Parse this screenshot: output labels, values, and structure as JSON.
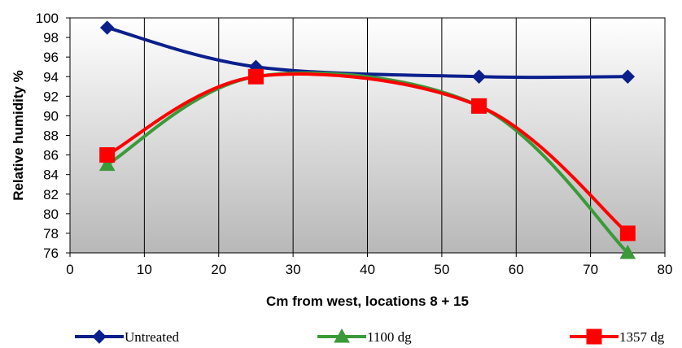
{
  "chart_data": {
    "type": "line",
    "title": "",
    "xlabel": "Cm from west, locations 8 + 15",
    "ylabel": "Relative humidity %",
    "xlim": [
      0,
      80
    ],
    "ylim": [
      76,
      100
    ],
    "x_ticks": [
      0,
      10,
      20,
      30,
      40,
      50,
      60,
      70,
      80
    ],
    "y_ticks": [
      76,
      78,
      80,
      82,
      84,
      86,
      88,
      90,
      92,
      94,
      96,
      98,
      100
    ],
    "grid": "vertical lines at x ticks",
    "smoothed": true,
    "legend_position": "bottom",
    "series": [
      {
        "name": "Untreated",
        "color": "#0b1f8c",
        "marker": "diamond",
        "x": [
          5,
          25,
          55,
          75
        ],
        "y": [
          99,
          95,
          94,
          94
        ]
      },
      {
        "name": "1100 dg",
        "color": "#3a9a3a",
        "marker": "triangle",
        "x": [
          5,
          25,
          55,
          75
        ],
        "y": [
          85,
          94,
          91,
          76
        ]
      },
      {
        "name": "1357 dg",
        "color": "#ff0000",
        "marker": "square",
        "x": [
          5,
          25,
          55,
          75
        ],
        "y": [
          86,
          94,
          91,
          78
        ]
      }
    ]
  }
}
